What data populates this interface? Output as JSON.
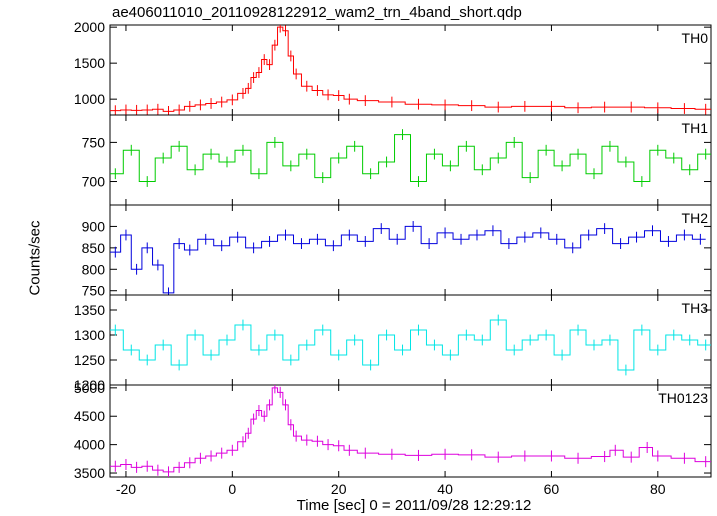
{
  "chart_data": {
    "type": "line",
    "title": "ae406011010_20110928122912_wam2_trn_4band_short.qdp",
    "xlabel": "Time [sec] 0 = 2011/09/28 12:29:12",
    "ylabel": "Counts/sec",
    "xlim": [
      -23,
      90
    ],
    "x_ticks": [
      -20,
      0,
      20,
      40,
      60,
      80
    ],
    "panels": [
      {
        "name": "TH0",
        "color": "#ff0000",
        "ylim": [
          780,
          2030
        ],
        "y_ticks": [
          1000,
          1500,
          2000
        ],
        "x": [
          -22,
          -20,
          -18,
          -16,
          -14,
          -12,
          -10,
          -8,
          -6,
          -4,
          -2,
          0,
          2,
          3,
          4,
          5,
          6,
          7,
          8,
          9,
          10,
          11,
          12,
          14,
          16,
          18,
          20,
          22,
          25,
          30,
          35,
          40,
          45,
          50,
          55,
          60,
          65,
          70,
          75,
          80,
          85,
          89
        ],
        "y": [
          840,
          850,
          845,
          850,
          860,
          830,
          850,
          900,
          920,
          940,
          960,
          990,
          1080,
          1150,
          1300,
          1370,
          1550,
          1480,
          1750,
          2000,
          1950,
          1600,
          1350,
          1180,
          1120,
          1060,
          1050,
          1000,
          980,
          960,
          930,
          920,
          910,
          890,
          900,
          900,
          880,
          890,
          890,
          880,
          870,
          860
        ]
      },
      {
        "name": "TH1",
        "color": "#00cc00",
        "ylim": [
          670,
          785
        ],
        "y_ticks": [
          700,
          750
        ],
        "x": [
          -22,
          -19,
          -16,
          -13,
          -10,
          -7,
          -4,
          -1,
          2,
          5,
          8,
          11,
          14,
          17,
          20,
          23,
          26,
          29,
          32,
          35,
          38,
          41,
          44,
          47,
          50,
          53,
          56,
          59,
          62,
          65,
          68,
          71,
          74,
          77,
          80,
          83,
          86,
          89
        ],
        "y": [
          710,
          740,
          700,
          730,
          745,
          715,
          735,
          725,
          740,
          710,
          750,
          720,
          735,
          705,
          730,
          745,
          710,
          725,
          760,
          700,
          735,
          720,
          745,
          715,
          730,
          750,
          705,
          740,
          720,
          735,
          710,
          745,
          725,
          700,
          740,
          730,
          715,
          735
        ]
      },
      {
        "name": "TH2",
        "color": "#0000dd",
        "ylim": [
          740,
          950
        ],
        "y_ticks": [
          750,
          800,
          850,
          900
        ],
        "x": [
          -22,
          -20,
          -18,
          -16,
          -14,
          -12,
          -10,
          -8,
          -5,
          -2,
          1,
          4,
          7,
          10,
          13,
          16,
          19,
          22,
          25,
          28,
          31,
          34,
          37,
          40,
          43,
          46,
          49,
          52,
          55,
          58,
          61,
          64,
          67,
          70,
          73,
          76,
          79,
          82,
          85,
          88
        ],
        "y": [
          840,
          880,
          800,
          850,
          810,
          745,
          860,
          845,
          870,
          855,
          875,
          850,
          865,
          880,
          860,
          870,
          855,
          880,
          865,
          895,
          870,
          900,
          860,
          885,
          870,
          880,
          890,
          860,
          875,
          885,
          870,
          850,
          880,
          895,
          860,
          875,
          890,
          865,
          880,
          870
        ]
      },
      {
        "name": "TH3",
        "color": "#00e5e5",
        "ylim": [
          1200,
          1380
        ],
        "y_ticks": [
          1200,
          1250,
          1300,
          1350
        ],
        "x": [
          -22,
          -19,
          -16,
          -13,
          -10,
          -7,
          -4,
          -1,
          2,
          5,
          8,
          11,
          14,
          17,
          20,
          23,
          26,
          29,
          32,
          35,
          38,
          41,
          44,
          47,
          50,
          53,
          56,
          59,
          62,
          65,
          68,
          71,
          74,
          77,
          80,
          83,
          86,
          89
        ],
        "y": [
          1310,
          1270,
          1250,
          1280,
          1240,
          1300,
          1260,
          1290,
          1320,
          1270,
          1300,
          1250,
          1280,
          1310,
          1260,
          1290,
          1240,
          1300,
          1270,
          1310,
          1280,
          1260,
          1300,
          1290,
          1330,
          1270,
          1290,
          1300,
          1260,
          1310,
          1280,
          1290,
          1230,
          1310,
          1270,
          1300,
          1290,
          1280
        ]
      },
      {
        "name": "TH0123",
        "color": "#dd00dd",
        "ylim": [
          3430,
          5050
        ],
        "y_ticks": [
          3500,
          4000,
          4500,
          5000
        ],
        "x": [
          -22,
          -20,
          -18,
          -16,
          -14,
          -12,
          -10,
          -8,
          -6,
          -4,
          -2,
          0,
          2,
          3,
          4,
          5,
          6,
          7,
          8,
          9,
          10,
          11,
          12,
          14,
          16,
          18,
          20,
          22,
          25,
          30,
          35,
          40,
          45,
          50,
          55,
          60,
          65,
          70,
          72,
          75,
          78,
          80,
          85,
          89
        ],
        "y": [
          3620,
          3650,
          3600,
          3620,
          3550,
          3520,
          3600,
          3680,
          3760,
          3800,
          3850,
          3900,
          4050,
          4200,
          4450,
          4600,
          4500,
          4700,
          5000,
          4920,
          4700,
          4350,
          4150,
          4080,
          4060,
          4000,
          3980,
          3900,
          3850,
          3830,
          3810,
          3830,
          3820,
          3780,
          3800,
          3800,
          3760,
          3790,
          3900,
          3780,
          3950,
          3800,
          3760,
          3700
        ]
      }
    ]
  }
}
